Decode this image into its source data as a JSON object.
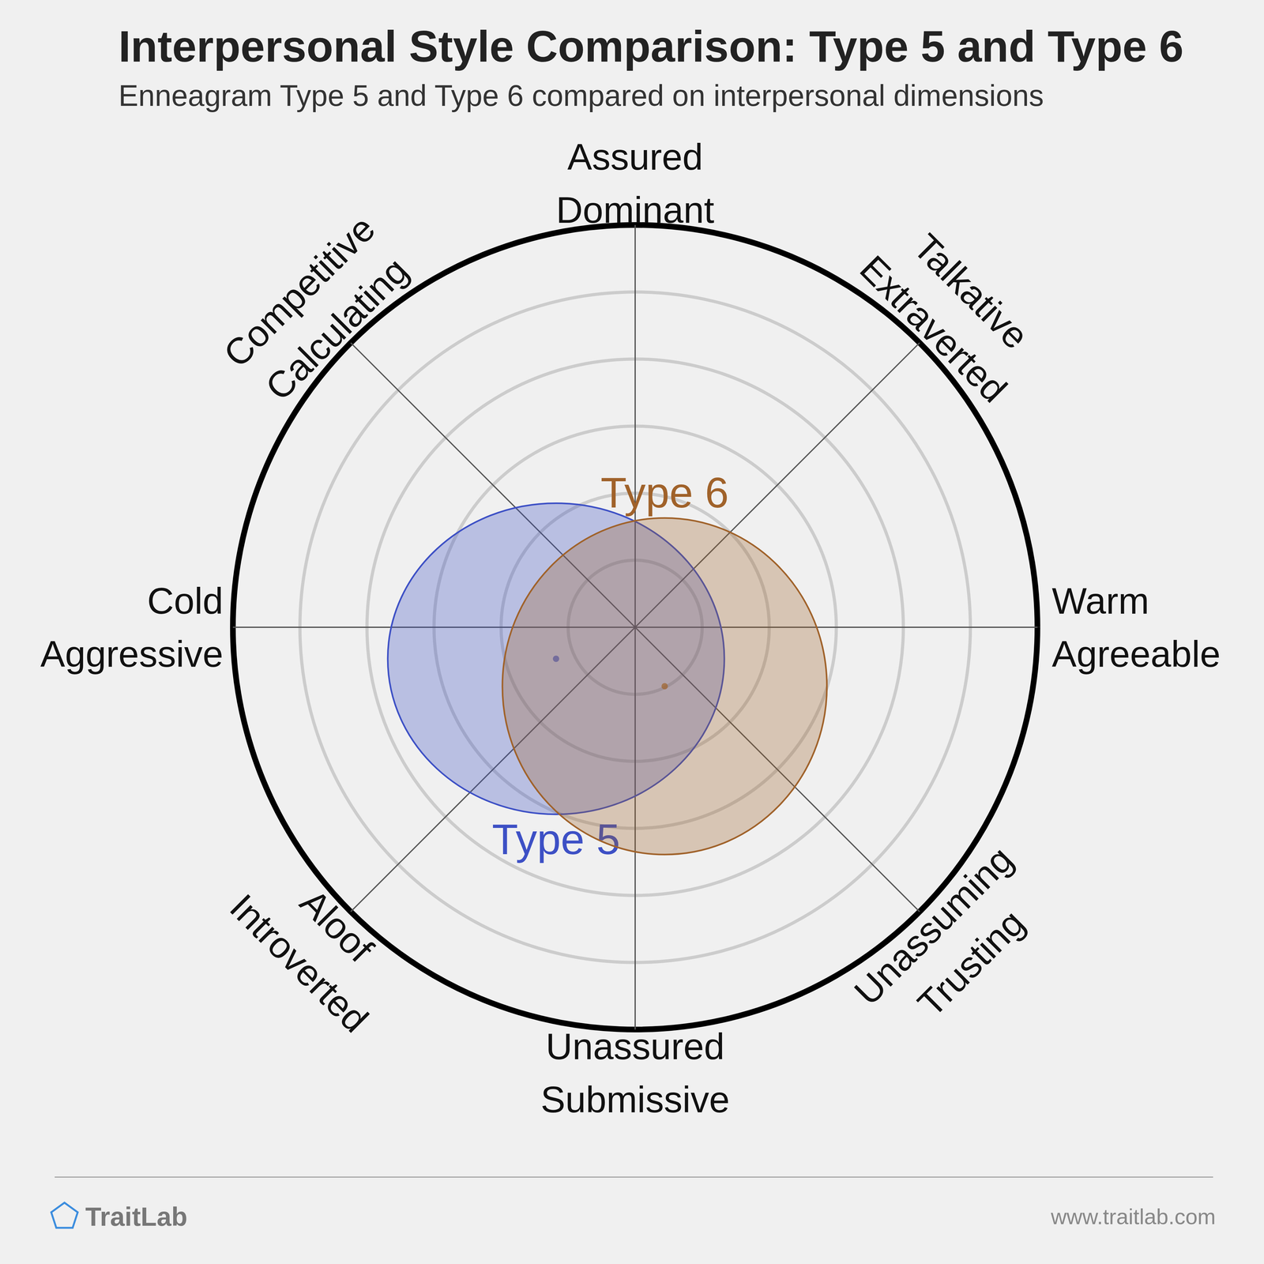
{
  "chart_data": {
    "type": "circumplex",
    "title": "Interpersonal Style Comparison: Type 5 and Type 6",
    "subtitle": "Enneagram Type 5 and Type 6 compared on interpersonal dimensions",
    "xlim": [
      -6,
      6
    ],
    "ylim": [
      -6,
      6
    ],
    "rticks": [
      1,
      2,
      3,
      4,
      5,
      6
    ],
    "grid": true,
    "tick_labels": false,
    "octants": [
      [
        "Assured",
        "Dominant"
      ],
      [
        "Talkative",
        "Extraverted"
      ],
      [
        "Warm",
        "Agreeable"
      ],
      [
        "Unassuming",
        "Trusting"
      ],
      [
        "Unassured",
        "Submissive"
      ],
      [
        "Aloof",
        "Introverted"
      ],
      [
        "Cold",
        "Aggressive"
      ],
      [
        "Competitive",
        "Calculating"
      ]
    ],
    "series": [
      {
        "name": "Type 5",
        "color": "#3d50c5",
        "x": -1.18,
        "y": -0.47,
        "rx": 2.51,
        "ry": 2.32
      },
      {
        "name": "Type 6",
        "color": "#a0622a",
        "x": 0.44,
        "y": -0.88,
        "rx": 2.42,
        "ry": 2.51
      }
    ],
    "footer": {
      "brand": "TraitLab",
      "url": "www.traitlab.com"
    }
  }
}
